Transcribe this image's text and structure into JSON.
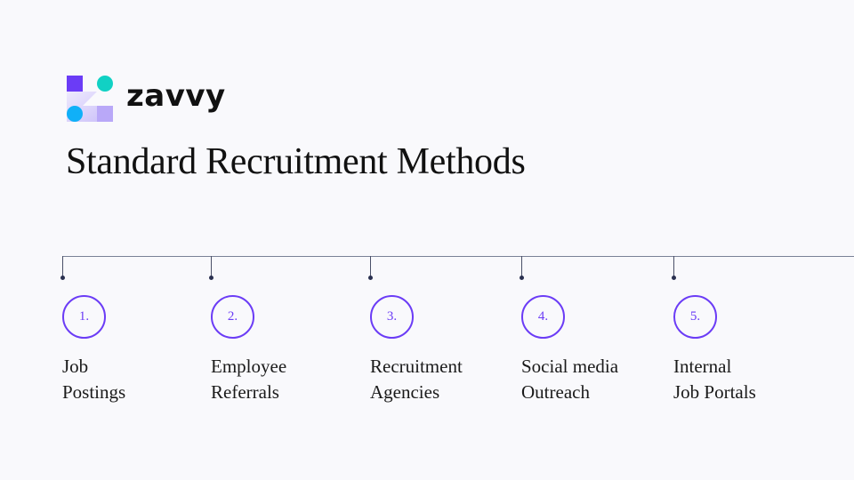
{
  "brand": {
    "name": "zavvy",
    "colors": {
      "square": "#6b3cf6",
      "teal": "#11d1c4",
      "blue": "#10b0f8",
      "light": "#b9a8f8"
    }
  },
  "title": "Standard Recruitment Methods",
  "accent": "#6b3cf6",
  "steps": [
    {
      "number": "1.",
      "line1": "Job",
      "line2": "Postings"
    },
    {
      "number": "2.",
      "line1": "Employee",
      "line2": "Referrals"
    },
    {
      "number": "3.",
      "line1": "Recruitment",
      "line2": "Agencies"
    },
    {
      "number": "4.",
      "line1": "Social media",
      "line2": "Outreach"
    },
    {
      "number": "5.",
      "line1": "Internal",
      "line2": "Job Portals"
    }
  ]
}
